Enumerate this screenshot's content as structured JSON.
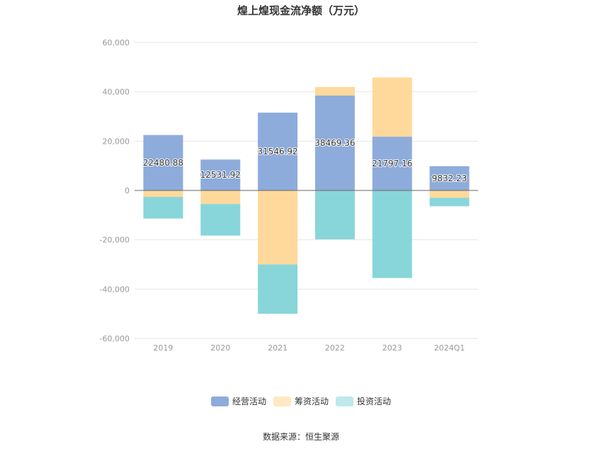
{
  "chart_data": {
    "type": "bar",
    "stacked": true,
    "title": "煌上煌现金流净额（万元）",
    "categories": [
      "2019",
      "2020",
      "2021",
      "2022",
      "2023",
      "2024Q1"
    ],
    "series": [
      {
        "name": "经营活动",
        "color": "#8eacdb",
        "values": [
          22480.88,
          12531.92,
          31546.92,
          38469.36,
          21797.16,
          9832.23
        ],
        "labels": [
          "22480.88",
          "12531.92",
          "31546.92",
          "38469.36",
          "21797.16",
          "9832.23"
        ]
      },
      {
        "name": "筹资活动",
        "color": "#ffd99b",
        "values": [
          -2600,
          -5500,
          -30000,
          3500,
          24000,
          -3000
        ]
      },
      {
        "name": "投资活动",
        "color": "#88d6da",
        "values": [
          -8800,
          -12800,
          -20000,
          -19800,
          -35500,
          -3400
        ]
      }
    ],
    "ylim": [
      -60000,
      60000
    ],
    "yticks": [
      -60000,
      -40000,
      -20000,
      0,
      20000,
      40000,
      60000
    ],
    "ytick_labels": [
      "-60,000",
      "-40,000",
      "-20,000",
      "0",
      "20,000",
      "40,000",
      "60,000"
    ],
    "grid": true,
    "legend": "bottom-center",
    "source": "数据来源：恒生聚源"
  }
}
